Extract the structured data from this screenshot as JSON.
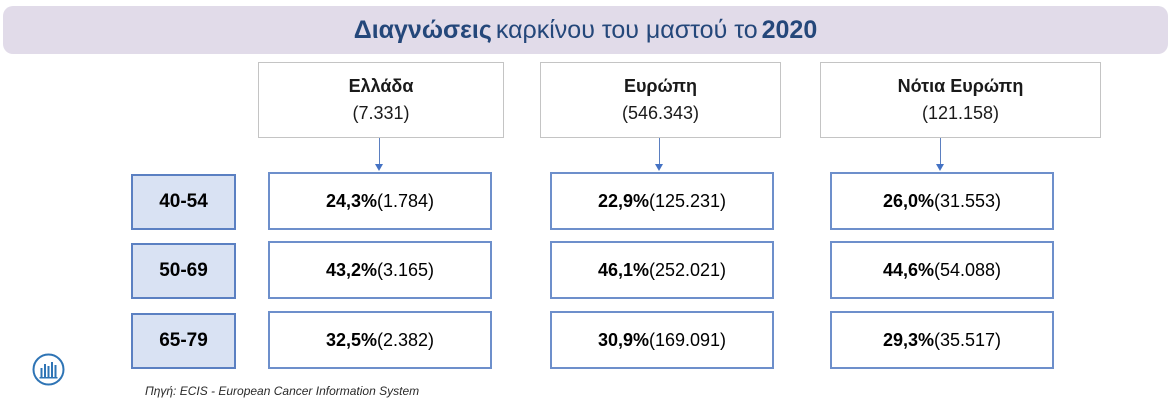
{
  "title": {
    "bold_part": "Διαγνώσεις",
    "middle_part": "καρκίνου του μαστού το",
    "year": "2020"
  },
  "columns": [
    {
      "name": "Ελλάδα",
      "total": "(7.331)"
    },
    {
      "name": "Ευρώπη",
      "total": "(546.343)"
    },
    {
      "name": "Νότια Ευρώπη",
      "total": "(121.158)"
    }
  ],
  "rows": [
    {
      "age_group": "40-54",
      "cells": [
        {
          "pct": "24,3%",
          "count": "(1.784)"
        },
        {
          "pct": "22,9%",
          "count": "(125.231)"
        },
        {
          "pct": "26,0%",
          "count": "(31.553)"
        }
      ]
    },
    {
      "age_group": "50-69",
      "cells": [
        {
          "pct": "43,2%",
          "count": "(3.165)"
        },
        {
          "pct": "46,1%",
          "count": "(252.021)"
        },
        {
          "pct": "44,6%",
          "count": "(54.088)"
        }
      ]
    },
    {
      "age_group": "65-79",
      "cells": [
        {
          "pct": "32,5%",
          "count": "(2.382)"
        },
        {
          "pct": "30,9%",
          "count": "(169.091)"
        },
        {
          "pct": "29,3%",
          "count": "(35.517)"
        }
      ]
    }
  ],
  "source": "Πηγή: ECIS - European Cancer Information System",
  "icons": {
    "corner_icon": "bar-chart-icon"
  },
  "colors": {
    "title_bg": "#e1dbe9",
    "title_text": "#24477a",
    "accent_blue": "#4472c4",
    "label_fill": "#d9e2f3"
  }
}
